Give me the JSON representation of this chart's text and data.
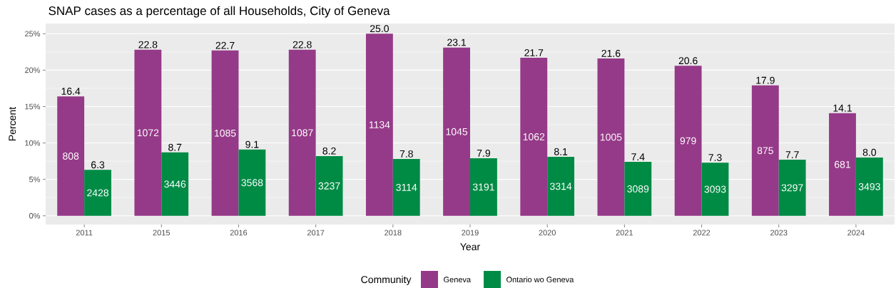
{
  "chart_data": {
    "type": "bar",
    "title": "SNAP cases as a percentage of all Households, City of Geneva",
    "xlabel": "Year",
    "ylabel": "Percent",
    "legend_title": "Community",
    "categories": [
      "2011",
      "2015",
      "2016",
      "2017",
      "2018",
      "2019",
      "2020",
      "2021",
      "2022",
      "2023",
      "2024"
    ],
    "series": [
      {
        "name": "Geneva",
        "color": "#953a88",
        "values": [
          16.4,
          22.8,
          22.7,
          22.8,
          25.0,
          23.1,
          21.7,
          21.6,
          20.6,
          17.9,
          14.1
        ],
        "value_labels": [
          "16.4",
          "22.8",
          "22.7",
          "22.8",
          "25.0",
          "23.1",
          "21.7",
          "21.6",
          "20.6",
          "17.9",
          "14.1"
        ]
      },
      {
        "name": "Ontario wo Geneva",
        "color": "#008b45",
        "values": [
          6.3,
          8.7,
          9.1,
          8.2,
          7.8,
          7.9,
          8.1,
          7.4,
          7.3,
          7.7,
          8.0
        ],
        "value_labels": [
          "6.3",
          "8.7",
          "9.1",
          "8.2",
          "7.8",
          "7.9",
          "8.1",
          "7.4",
          "7.3",
          "7.7",
          "8.0"
        ]
      }
    ],
    "annotations": [
      {
        "text": "808",
        "x": "2011",
        "y": 8.2
      },
      {
        "text": "1072",
        "x": "2015",
        "y": 11.4
      },
      {
        "text": "1085",
        "x": "2016",
        "y": 11.35
      },
      {
        "text": "1087",
        "x": "2017",
        "y": 11.4
      },
      {
        "text": "1134",
        "x": "2018",
        "y": 12.5
      },
      {
        "text": "1045",
        "x": "2019",
        "y": 11.55
      },
      {
        "text": "1062",
        "x": "2020",
        "y": 10.85
      },
      {
        "text": "1005",
        "x": "2021",
        "y": 10.8
      },
      {
        "text": "979",
        "x": "2022",
        "y": 10.3
      },
      {
        "text": "875",
        "x": "2023",
        "y": 8.95
      },
      {
        "text": "681",
        "x": "2024",
        "y": 7.05
      },
      {
        "text": "2428",
        "x": "2011",
        "y": 3.15
      },
      {
        "text": "3446",
        "x": "2015",
        "y": 4.35
      },
      {
        "text": "3568",
        "x": "2016",
        "y": 4.55
      },
      {
        "text": "3237",
        "x": "2017",
        "y": 4.1
      },
      {
        "text": "3114",
        "x": "2018",
        "y": 3.9
      },
      {
        "text": "3191",
        "x": "2019",
        "y": 3.95
      },
      {
        "text": "3314",
        "x": "2020",
        "y": 4.05
      },
      {
        "text": "3089",
        "x": "2021",
        "y": 3.7
      },
      {
        "text": "3093",
        "x": "2022",
        "y": 3.65
      },
      {
        "text": "3297",
        "x": "2023",
        "y": 3.85
      },
      {
        "text": "3493",
        "x": "2024",
        "y": 4.0
      }
    ],
    "ylim": [
      -1.2,
      26.4
    ],
    "yticks": [
      {
        "value": 0,
        "label": "0%"
      },
      {
        "value": 5,
        "label": "5%"
      },
      {
        "value": 10,
        "label": "10%"
      },
      {
        "value": 15,
        "label": "15%"
      },
      {
        "value": 20,
        "label": "20%"
      },
      {
        "value": 25,
        "label": "25%"
      }
    ],
    "grid": "y",
    "legend": "bottom"
  }
}
